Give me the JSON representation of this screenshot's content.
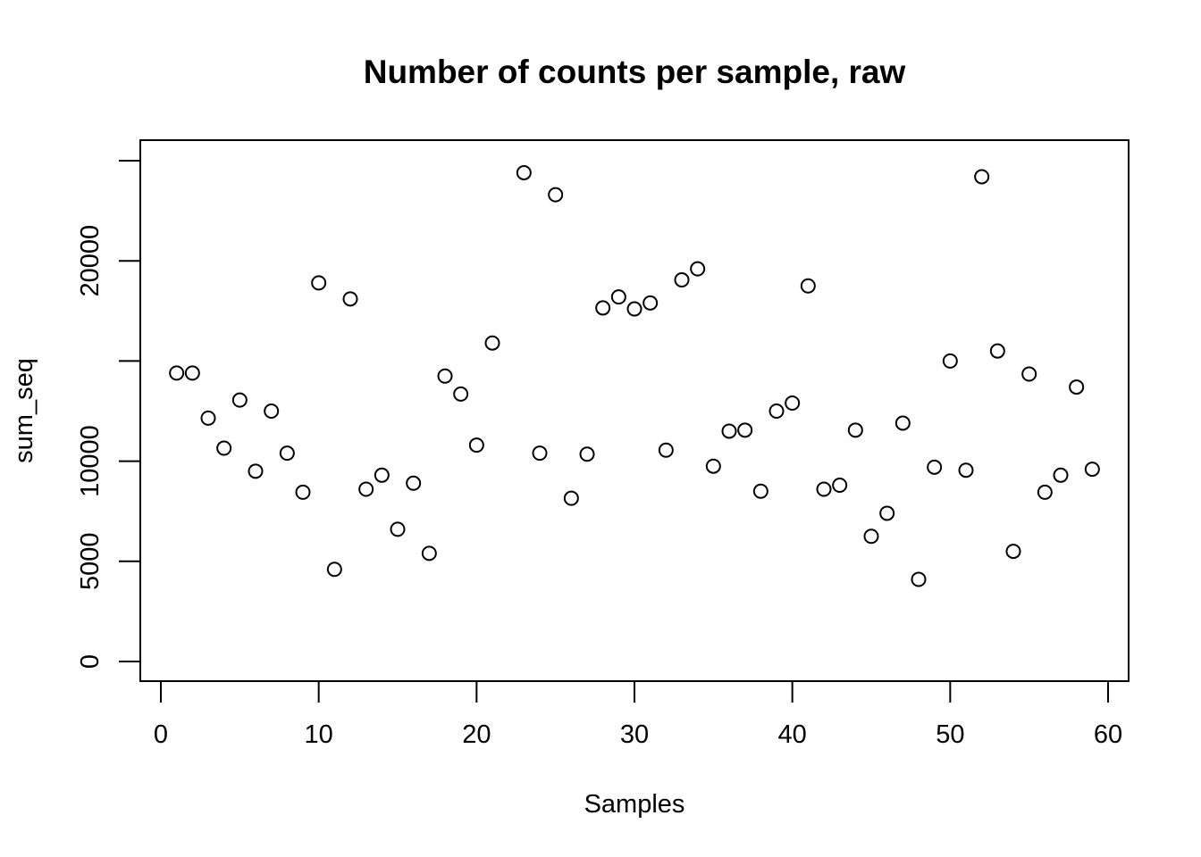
{
  "chart_data": {
    "type": "scatter",
    "title": "Number of counts per sample, raw",
    "xlabel": "Samples",
    "ylabel": "sum_seq",
    "xlim": [
      0,
      60
    ],
    "ylim": [
      0,
      25000
    ],
    "x_ticks": [
      0,
      10,
      20,
      30,
      40,
      50,
      60
    ],
    "y_ticks": [
      0,
      5000,
      10000,
      15000,
      20000,
      25000
    ],
    "y_tick_labels": [
      "0",
      "5000",
      "10000",
      "",
      "20000",
      ""
    ],
    "grid": false,
    "legend": "none",
    "point_marker": "open-circle",
    "point_color": "#000000",
    "x": [
      1,
      2,
      3,
      4,
      5,
      6,
      7,
      8,
      9,
      10,
      11,
      12,
      13,
      14,
      15,
      16,
      17,
      18,
      19,
      20,
      21,
      22,
      23,
      24,
      25,
      26,
      27,
      28,
      29,
      30,
      31,
      32,
      33,
      34,
      35,
      36,
      37,
      38,
      39,
      40,
      41,
      42,
      43,
      44,
      45,
      46,
      47,
      48,
      49,
      50,
      51,
      52,
      53,
      54,
      55,
      56,
      57,
      58,
      59
    ],
    "y": [
      14400,
      14400,
      12150,
      10650,
      13050,
      9500,
      12500,
      10400,
      8450,
      18900,
      4600,
      18100,
      8600,
      9300,
      6600,
      8900,
      5400,
      14250,
      13350,
      10800,
      15900,
      null,
      24400,
      10400,
      23300,
      8150,
      10350,
      17650,
      18200,
      17600,
      17900,
      10550,
      19050,
      19600,
      9750,
      11500,
      11550,
      8500,
      12500,
      12900,
      18750,
      8600,
      8800,
      11550,
      6250,
      7400,
      11900,
      4100,
      9700,
      15000,
      9550,
      24200,
      15500,
      5500,
      14350,
      8450,
      9300,
      13700,
      9600
    ]
  }
}
